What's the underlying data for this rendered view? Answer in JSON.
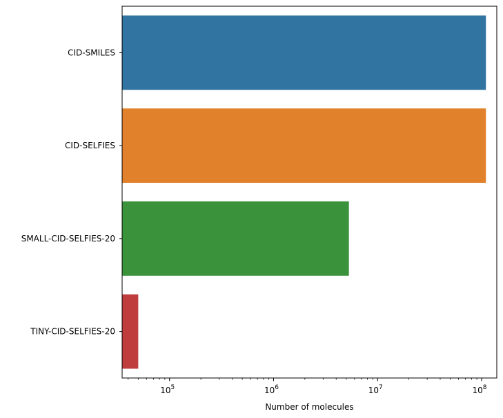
{
  "chart_data": {
    "type": "bar",
    "orientation": "horizontal",
    "title": "",
    "xlabel": "Number of molecules",
    "ylabel": "",
    "x_scale": "log",
    "xlim": [
      35000,
      140000000
    ],
    "x_ticks": [
      {
        "value": 100000,
        "base": "10",
        "exp": "5"
      },
      {
        "value": 1000000,
        "base": "10",
        "exp": "6"
      },
      {
        "value": 10000000,
        "base": "10",
        "exp": "7"
      },
      {
        "value": 100000000,
        "base": "10",
        "exp": "8"
      }
    ],
    "categories": [
      "CID-SMILES",
      "CID-SELFIES",
      "SMALL-CID-SELFIES-20",
      "TINY-CID-SELFIES-20"
    ],
    "values": [
      110000000,
      110000000,
      5300000,
      50000
    ],
    "colors": [
      "#3274a1",
      "#e1812c",
      "#3a923a",
      "#c03d3e"
    ],
    "grid": false,
    "legend": "none"
  }
}
